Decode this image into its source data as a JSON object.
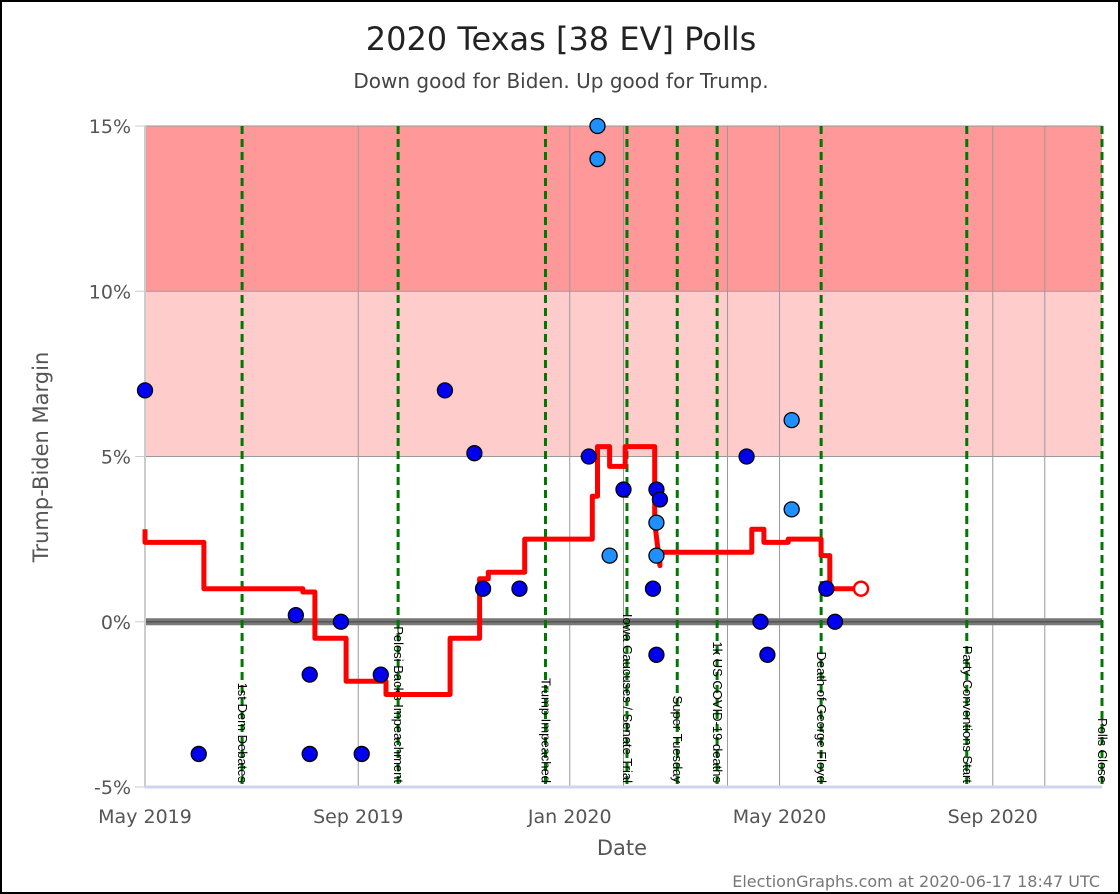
{
  "chart_data": {
    "type": "scatter",
    "title": "2020 Texas [38 EV] Polls",
    "subtitle": "Down good for Biden. Up good for Trump.",
    "xlabel": "Date",
    "ylabel": "Trump-Biden Margin",
    "credit": "ElectionGraphs.com at 2020-06-17 18:47 UTC",
    "xlim": [
      "2019-05-01",
      "2020-11-03"
    ],
    "ylim": [
      -5,
      15
    ],
    "x_ticks": [
      {
        "date": "2019-05-01",
        "label": "May 2019"
      },
      {
        "date": "2019-09-01",
        "label": "Sep 2019"
      },
      {
        "date": "2020-01-01",
        "label": "Jan 2020"
      },
      {
        "date": "2020-05-01",
        "label": "May 2020"
      },
      {
        "date": "2020-09-01",
        "label": "Sep 2020"
      }
    ],
    "y_ticks": [
      {
        "value": -5,
        "label": "-5%"
      },
      {
        "value": 0,
        "label": "0%"
      },
      {
        "value": 5,
        "label": "5%"
      },
      {
        "value": 10,
        "label": "10%"
      },
      {
        "value": 15,
        "label": "15%"
      }
    ],
    "extra_gridlines": [
      "2020-02-01",
      "2020-04-01",
      "2020-10-01"
    ],
    "bands": [
      {
        "from": 10,
        "to": 15,
        "color": "#ff9999"
      },
      {
        "from": 5,
        "to": 10,
        "color": "#ffcccc"
      }
    ],
    "events": [
      {
        "date": "2019-06-26",
        "label": "1st Dem Debates"
      },
      {
        "date": "2019-09-24",
        "label": "Pelosi Backs Impeachment"
      },
      {
        "date": "2019-12-18",
        "label": "Trump Impeached"
      },
      {
        "date": "2020-02-03",
        "label": "Iowa Caucuses / Senate Trial"
      },
      {
        "date": "2020-03-03",
        "label": "Super Tuesday"
      },
      {
        "date": "2020-03-26",
        "label": "1k US COVID-19 deaths"
      },
      {
        "date": "2020-05-25",
        "label": "Death of George Floyd"
      },
      {
        "date": "2020-08-17",
        "label": "Party Conventions Start"
      },
      {
        "date": "2020-11-03",
        "label": "Polls Close"
      }
    ],
    "polls": [
      {
        "date": "2019-05-01",
        "margin": 7.0,
        "color": "#0000ee"
      },
      {
        "date": "2019-06-01",
        "margin": -4.0,
        "color": "#0000ee"
      },
      {
        "date": "2019-07-27",
        "margin": 0.2,
        "color": "#0000ee"
      },
      {
        "date": "2019-08-04",
        "margin": -1.6,
        "color": "#0000ee"
      },
      {
        "date": "2019-08-04",
        "margin": -4.0,
        "color": "#0000ee"
      },
      {
        "date": "2019-08-22",
        "margin": 0.0,
        "color": "#0000ee"
      },
      {
        "date": "2019-09-03",
        "margin": -4.0,
        "color": "#0000ee"
      },
      {
        "date": "2019-09-14",
        "margin": -1.6,
        "color": "#0000ee"
      },
      {
        "date": "2019-10-21",
        "margin": 7.0,
        "color": "#0000ee"
      },
      {
        "date": "2019-11-07",
        "margin": 5.1,
        "color": "#0000ee"
      },
      {
        "date": "2019-11-12",
        "margin": 1.0,
        "color": "#0000ee"
      },
      {
        "date": "2019-12-03",
        "margin": 1.0,
        "color": "#0000ee"
      },
      {
        "date": "2020-01-12",
        "margin": 5.0,
        "color": "#0000ee"
      },
      {
        "date": "2020-01-17",
        "margin": 15.0,
        "color": "#1e90ff"
      },
      {
        "date": "2020-01-17",
        "margin": 14.0,
        "color": "#1e90ff"
      },
      {
        "date": "2020-01-24",
        "margin": 2.0,
        "color": "#1e90ff"
      },
      {
        "date": "2020-02-01",
        "margin": 4.0,
        "color": "#0000ee"
      },
      {
        "date": "2020-02-18",
        "margin": 1.0,
        "color": "#0000ee"
      },
      {
        "date": "2020-02-20",
        "margin": -1.0,
        "color": "#0000ee"
      },
      {
        "date": "2020-02-20",
        "margin": 4.0,
        "color": "#0000ee"
      },
      {
        "date": "2020-02-22",
        "margin": 3.7,
        "color": "#0000ee"
      },
      {
        "date": "2020-02-20",
        "margin": 3.0,
        "color": "#1e90ff"
      },
      {
        "date": "2020-02-20",
        "margin": 2.0,
        "color": "#1e90ff"
      },
      {
        "date": "2020-04-12",
        "margin": 5.0,
        "color": "#0000ee"
      },
      {
        "date": "2020-04-20",
        "margin": 0.0,
        "color": "#0000ee"
      },
      {
        "date": "2020-04-24",
        "margin": -1.0,
        "color": "#0000ee"
      },
      {
        "date": "2020-05-08",
        "margin": 6.1,
        "color": "#1e90ff"
      },
      {
        "date": "2020-05-08",
        "margin": 3.4,
        "color": "#1e90ff"
      },
      {
        "date": "2020-05-28",
        "margin": 1.0,
        "color": "#0000ee"
      },
      {
        "date": "2020-06-02",
        "margin": 0.0,
        "color": "#0000ee"
      }
    ],
    "average_series": {
      "name": "",
      "color": "#ff0000",
      "points": [
        [
          "2019-05-01",
          2.8
        ],
        [
          "2019-05-01",
          2.4
        ],
        [
          "2019-06-04",
          2.4
        ],
        [
          "2019-06-04",
          1.0
        ],
        [
          "2019-07-31",
          1.0
        ],
        [
          "2019-07-31",
          0.9
        ],
        [
          "2019-08-07",
          0.9
        ],
        [
          "2019-08-07",
          -0.5
        ],
        [
          "2019-08-25",
          -0.5
        ],
        [
          "2019-08-25",
          -1.8
        ],
        [
          "2019-09-17",
          -1.8
        ],
        [
          "2019-09-17",
          -2.2
        ],
        [
          "2019-10-24",
          -2.2
        ],
        [
          "2019-10-24",
          -0.5
        ],
        [
          "2019-11-10",
          -0.5
        ],
        [
          "2019-11-10",
          1.3
        ],
        [
          "2019-11-15",
          1.3
        ],
        [
          "2019-11-15",
          1.5
        ],
        [
          "2019-12-06",
          1.5
        ],
        [
          "2019-12-06",
          2.5
        ],
        [
          "2020-01-14",
          2.5
        ],
        [
          "2020-01-14",
          3.8
        ],
        [
          "2020-01-17",
          3.8
        ],
        [
          "2020-01-17",
          5.3
        ],
        [
          "2020-01-24",
          5.3
        ],
        [
          "2020-01-24",
          4.7
        ],
        [
          "2020-02-02",
          4.7
        ],
        [
          "2020-02-02",
          5.3
        ],
        [
          "2020-02-19",
          5.3
        ],
        [
          "2020-02-19",
          3.0
        ],
        [
          "2020-02-22",
          1.7
        ],
        [
          "2020-02-22",
          2.1
        ],
        [
          "2020-04-15",
          2.1
        ],
        [
          "2020-04-15",
          2.8
        ],
        [
          "2020-04-22",
          2.8
        ],
        [
          "2020-04-22",
          2.4
        ],
        [
          "2020-05-06",
          2.4
        ],
        [
          "2020-05-06",
          2.5
        ],
        [
          "2020-05-25",
          2.5
        ],
        [
          "2020-05-25",
          2.0
        ],
        [
          "2020-05-30",
          2.0
        ],
        [
          "2020-05-30",
          1.0
        ],
        [
          "2020-06-17",
          1.0
        ]
      ],
      "current_marker": {
        "date": "2020-06-17",
        "margin": 1.0
      }
    }
  }
}
